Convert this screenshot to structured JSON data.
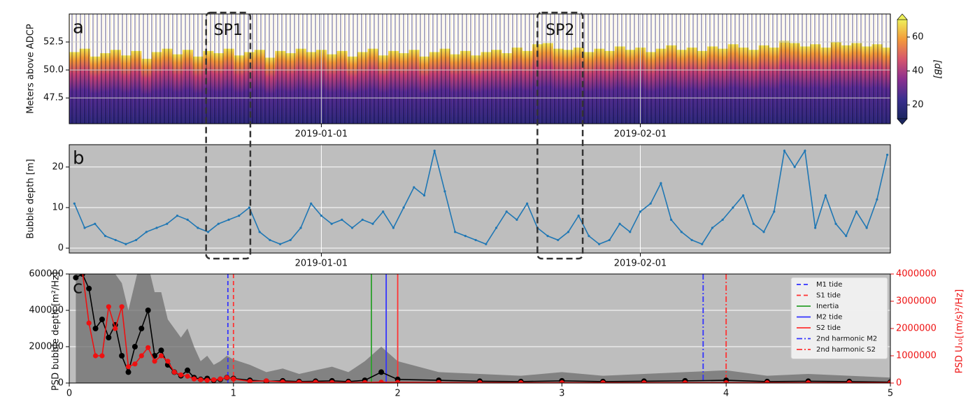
{
  "chart_data": [
    {
      "type": "heatmap",
      "label": "a",
      "ylabel": "Meters above ADCP",
      "x": [
        -24,
        -23,
        -22,
        -21,
        -20,
        -19,
        -18,
        -17,
        -16,
        -15,
        -14,
        -13,
        -12,
        -11,
        -10,
        -9,
        -8,
        -7,
        -6,
        -5,
        -4,
        -3,
        -2,
        -1,
        0,
        1,
        2,
        3,
        4,
        5,
        6,
        7,
        8,
        9,
        10,
        11,
        12,
        13,
        14,
        15,
        16,
        17,
        18,
        19,
        20,
        21,
        22,
        23,
        24,
        25,
        26,
        27,
        28,
        29,
        30,
        31,
        32,
        33,
        34,
        35,
        36,
        37,
        38,
        39,
        40,
        41,
        42,
        43,
        44,
        45,
        46,
        47,
        48,
        49,
        50,
        51,
        52,
        53,
        54,
        55
      ],
      "values": [
        51.6,
        51.9,
        51.2,
        51.5,
        51.8,
        51.3,
        51.7,
        51.0,
        51.6,
        51.9,
        51.4,
        51.8,
        51.2,
        51.7,
        51.5,
        51.9,
        51.3,
        51.6,
        51.8,
        51.1,
        51.7,
        51.5,
        51.9,
        51.6,
        51.8,
        51.4,
        51.7,
        51.2,
        51.6,
        51.9,
        51.3,
        51.7,
        51.5,
        51.8,
        51.2,
        51.6,
        51.9,
        51.4,
        51.7,
        51.3,
        51.6,
        51.8,
        51.5,
        52.0,
        51.7,
        52.3,
        52.4,
        51.9,
        51.8,
        52.0,
        51.6,
        51.9,
        51.7,
        52.1,
        51.8,
        52.0,
        51.6,
        51.9,
        52.2,
        51.8,
        52.0,
        51.7,
        52.1,
        51.9,
        52.3,
        52.0,
        51.8,
        52.2,
        52.0,
        52.6,
        52.4,
        52.1,
        52.3,
        52.0,
        52.5,
        52.2,
        52.4,
        52.1,
        52.3,
        52.0
      ],
      "xlim": [
        -24.5,
        55.3
      ],
      "xticks": [
        {
          "value": 0,
          "label": "2019-01-01"
        },
        {
          "value": 31,
          "label": "2019-02-01"
        }
      ],
      "ylim": [
        45.2,
        55
      ],
      "yticks": [
        47.5,
        {
          "value": 50,
          "label": "50.0"
        },
        52.5
      ],
      "grid": true,
      "colorbar": {
        "label": "[dB]",
        "lim": [
          11.8,
          70.3
        ],
        "ticks": [
          20,
          40,
          60
        ],
        "colors": [
          "#1b2660",
          "#3b2f8f",
          "#8b2f8f",
          "#d6556d",
          "#f39a3a",
          "#eef05a"
        ]
      },
      "annotations": [
        {
          "text": "SP1",
          "x": [
            -11.2,
            -6.9
          ]
        },
        {
          "text": "SP2",
          "x": [
            21,
            25.4
          ]
        }
      ]
    },
    {
      "type": "line",
      "label": "b",
      "ylabel": "Bubble depth [m]",
      "x": [
        -24,
        -23,
        -22,
        -21,
        -20,
        -19,
        -18,
        -17,
        -16,
        -15,
        -14,
        -13,
        -12,
        -11,
        -10,
        -9,
        -8,
        -7,
        -6,
        -5,
        -4,
        -3,
        -2,
        -1,
        0,
        1,
        2,
        3,
        4,
        5,
        6,
        7,
        8,
        9,
        10,
        11,
        12,
        13,
        14,
        15,
        16,
        17,
        18,
        19,
        20,
        21,
        22,
        23,
        24,
        25,
        26,
        27,
        28,
        29,
        30,
        31,
        32,
        33,
        34,
        35,
        36,
        37,
        38,
        39,
        40,
        41,
        42,
        43,
        44,
        45,
        46,
        47,
        48,
        49,
        50,
        51,
        52,
        53,
        54,
        55
      ],
      "series": [
        {
          "color": "#1f77b4",
          "values": [
            11,
            5,
            6,
            3,
            2,
            1,
            2,
            4,
            5,
            6,
            8,
            7,
            5,
            4,
            6,
            7,
            8,
            10,
            4,
            2,
            1,
            2,
            5,
            11,
            8,
            6,
            7,
            5,
            7,
            6,
            9,
            5,
            10,
            15,
            13,
            24,
            14,
            4,
            3,
            2,
            1,
            5,
            9,
            7,
            11,
            5,
            3,
            2,
            4,
            8,
            3,
            1,
            2,
            6,
            4,
            9,
            11,
            16,
            7,
            4,
            2,
            1,
            5,
            7,
            10,
            13,
            6,
            4,
            9,
            24,
            20,
            24,
            5,
            13,
            6,
            3,
            9,
            5,
            12,
            23
          ]
        }
      ],
      "xlim": [
        -24.5,
        55.3
      ],
      "xticks": [
        {
          "value": 0,
          "label": "2019-01-01"
        },
        {
          "value": 31,
          "label": "2019-02-01"
        }
      ],
      "ylim": [
        -1.2,
        25.5
      ],
      "yticks": [
        0,
        10,
        20
      ],
      "grid": true,
      "background": "#bebebe"
    },
    {
      "type": "psd",
      "label": "c",
      "ylabel": "PSD bubble depth [m²/Hz]",
      "y2label": "PSD U₁₀[(m/s)²/Hz]",
      "x": [
        0.04,
        0.08,
        0.12,
        0.16,
        0.2,
        0.24,
        0.28,
        0.32,
        0.36,
        0.4,
        0.44,
        0.48,
        0.52,
        0.56,
        0.6,
        0.64,
        0.68,
        0.72,
        0.76,
        0.8,
        0.84,
        0.88,
        0.92,
        0.96,
        1.0,
        1.1,
        1.2,
        1.3,
        1.4,
        1.5,
        1.6,
        1.7,
        1.8,
        1.9,
        2.0,
        2.25,
        2.5,
        2.75,
        3.0,
        3.25,
        3.5,
        3.75,
        4.0,
        4.25,
        4.5,
        4.75,
        5.0
      ],
      "band": {
        "color": "#6e6e6e",
        "values": [
          700000,
          700000,
          700000,
          700000,
          700000,
          650000,
          600000,
          550000,
          400000,
          550000,
          700000,
          650000,
          500000,
          500000,
          350000,
          300000,
          250000,
          300000,
          200000,
          120000,
          150000,
          100000,
          120000,
          150000,
          130000,
          100000,
          60000,
          80000,
          50000,
          70000,
          90000,
          60000,
          120000,
          200000,
          120000,
          60000,
          50000,
          40000,
          60000,
          40000,
          50000,
          60000,
          70000,
          40000,
          50000,
          40000,
          30000
        ]
      },
      "series": [
        {
          "color": "#000000",
          "values": [
            580000,
            600000,
            520000,
            300000,
            350000,
            250000,
            320000,
            150000,
            60000,
            200000,
            300000,
            400000,
            150000,
            180000,
            100000,
            60000,
            40000,
            70000,
            30000,
            20000,
            25000,
            15000,
            20000,
            30000,
            25000,
            15000,
            10000,
            12000,
            8000,
            10000,
            12000,
            8000,
            15000,
            60000,
            20000,
            15000,
            10000,
            8000,
            12000,
            8000,
            10000,
            12000,
            15000,
            8000,
            10000,
            8000,
            5000
          ]
        },
        {
          "color": "#ee1111",
          "axis": "y2",
          "values": [
            4200000,
            4100000,
            2200000,
            1000000,
            1000000,
            2800000,
            2000000,
            2800000,
            600000,
            700000,
            1000000,
            1300000,
            800000,
            1000000,
            800000,
            400000,
            300000,
            250000,
            150000,
            120000,
            100000,
            120000,
            150000,
            200000,
            150000,
            60000,
            80000,
            40000,
            30000,
            30000,
            20000,
            20000,
            20000,
            30000,
            25000,
            20000,
            15000,
            10000,
            10000,
            10000,
            10000,
            10000,
            10000,
            10000,
            10000,
            10000,
            10000
          ]
        }
      ],
      "vlines": [
        {
          "name": "M1 tide",
          "x": 0.966,
          "color": "#3333ff",
          "dash": "dashed"
        },
        {
          "name": "S1 tide",
          "x": 1.0,
          "color": "#ff3333",
          "dash": "dashed"
        },
        {
          "name": "Inertia",
          "x": 1.84,
          "color": "#2ca02c",
          "dash": "solid"
        },
        {
          "name": "M2 tide",
          "x": 1.93,
          "color": "#3333ff",
          "dash": "solid"
        },
        {
          "name": "S2 tide",
          "x": 2.0,
          "color": "#ff3333",
          "dash": "solid"
        },
        {
          "name": "2nd harmonic M2",
          "x": 3.86,
          "color": "#3333ff",
          "dash": "dashdot"
        },
        {
          "name": "2nd harmonic S2",
          "x": 4.0,
          "color": "#ff3333",
          "dash": "dashdot"
        }
      ],
      "legend": "upper right",
      "xlim": [
        0,
        5
      ],
      "xticks": [
        0,
        1,
        2,
        3,
        4,
        5
      ],
      "ylim": [
        0,
        600000
      ],
      "yticks": [
        0,
        200000,
        400000,
        600000
      ],
      "y2lim": [
        0,
        4000000
      ],
      "y2ticks": [
        0,
        1000000,
        2000000,
        3000000,
        4000000
      ],
      "y2color": "#ee1111",
      "grid": true,
      "background": "#bebebe"
    }
  ]
}
